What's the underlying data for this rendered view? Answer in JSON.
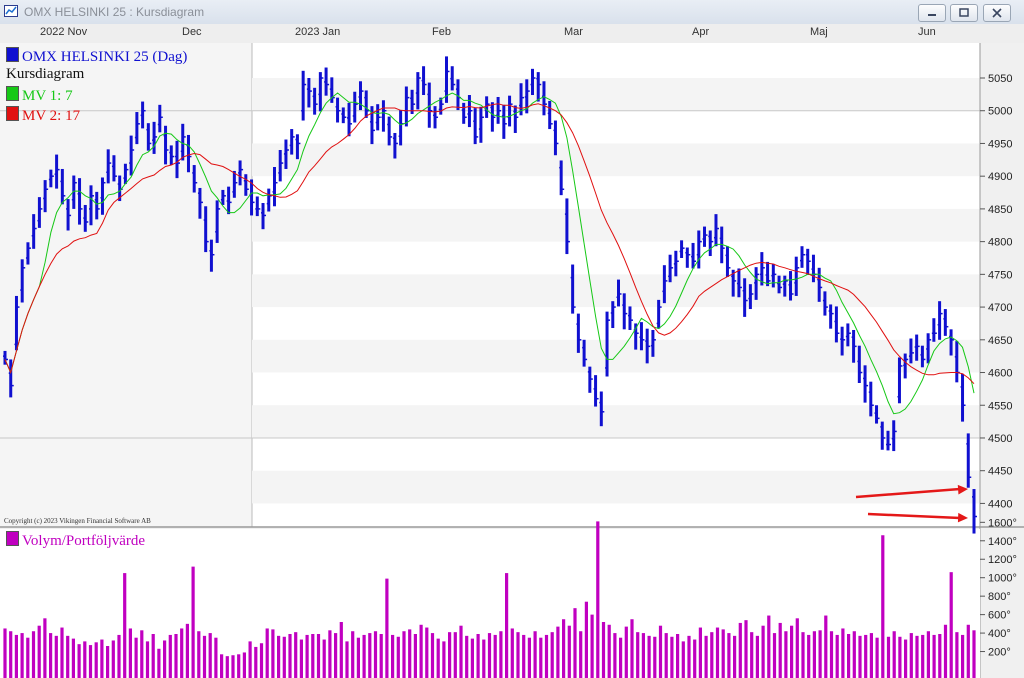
{
  "window": {
    "title": "OMX HELSINKI 25 : Kursdiagram"
  },
  "legend": {
    "main": "OMX HELSINKI 25 (Dag)",
    "chart_name": "Kursdiagram",
    "ma1": "MV 1: 7",
    "ma2": "MV 2: 17",
    "volume": "Volym/Portföljvärde"
  },
  "copyright": "Copyright (c) 2023 Vikingen Financial Software AB",
  "colors": {
    "price_bars": "#1010d0",
    "ma1": "#16c816",
    "ma2": "#e01010",
    "volume": "#c000c0",
    "arrows": "#e41818"
  },
  "chart_data": [
    {
      "type": "bar",
      "subtype": "ohlc-price",
      "months": [
        "2022 Nov",
        "Dec",
        "2023 Jan",
        "Feb",
        "Mar",
        "Apr",
        "Maj",
        "Jun"
      ],
      "ylim": [
        4370,
        5100
      ],
      "yticks": [
        4400,
        4450,
        4500,
        4550,
        4600,
        4650,
        4700,
        4750,
        4800,
        4850,
        4900,
        4950,
        5000,
        5050
      ],
      "close_approx": [
        4620,
        4580,
        4700,
        4760,
        4790,
        4820,
        4850,
        4880,
        4900,
        4910,
        4870,
        4840,
        4890,
        4850,
        4830,
        4870,
        4850,
        4890,
        4920,
        4900,
        4880,
        4910,
        4940,
        4980,
        5000,
        4950,
        4960,
        4990,
        4940,
        4930,
        4920,
        4960,
        4930,
        4890,
        4860,
        4800,
        4780,
        4850,
        4870,
        4860,
        4890,
        4910,
        4880,
        4860,
        4850,
        4840,
        4870,
        4890,
        4920,
        4940,
        4960,
        4950,
        5040,
        5030,
        5010,
        5050,
        5040,
        5020,
        5000,
        4990,
        4980,
        5010,
        5030,
        5000,
        4970,
        4990,
        5000,
        4960,
        4950,
        4980,
        5020,
        5010,
        5050,
        5040,
        5000,
        4990,
        5010,
        5060,
        5040,
        5020,
        4990,
        5000,
        4960,
        4990,
        5010,
        4990,
        5000,
        4980,
        5010,
        4990,
        5020,
        5030,
        5050,
        5040,
        5010,
        4980,
        4950,
        4880,
        4800,
        4700,
        4650,
        4620,
        4590,
        4560,
        4540,
        4680,
        4700,
        4720,
        4690,
        4680,
        4660,
        4650,
        4640,
        4650,
        4700,
        4740,
        4760,
        4770,
        4790,
        4780,
        4770,
        4800,
        4810,
        4800,
        4820,
        4790,
        4760,
        4740,
        4730,
        4710,
        4720,
        4750,
        4760,
        4740,
        4750,
        4730,
        4740,
        4720,
        4760,
        4780,
        4770,
        4750,
        4730,
        4700,
        4690,
        4660,
        4650,
        4660,
        4640,
        4600,
        4580,
        4550,
        4530,
        4500,
        4490,
        4510,
        4610,
        4620,
        4630,
        4640,
        4620,
        4650,
        4660,
        4690,
        4670,
        4650,
        4600,
        4550,
        4440,
        4380
      ],
      "volume_axis": {
        "ylim": [
          0,
          1750
        ],
        "yticks": [
          "200°",
          "400°",
          "600°",
          "800°",
          "1000°",
          "1200°",
          "1400°",
          "1600°"
        ]
      },
      "volume_approx": [
        450,
        420,
        380,
        400,
        350,
        420,
        480,
        560,
        400,
        370,
        460,
        370,
        340,
        280,
        310,
        270,
        300,
        330,
        260,
        320,
        380,
        1050,
        450,
        350,
        430,
        310,
        390,
        230,
        320,
        380,
        390,
        450,
        500,
        1120,
        420,
        370,
        400,
        350,
        170,
        150,
        160,
        170,
        190,
        310,
        250,
        290,
        450,
        440,
        370,
        360,
        390,
        410,
        330,
        380,
        390,
        390,
        330,
        430,
        400,
        520,
        310,
        420,
        350,
        380,
        400,
        420,
        390,
        990,
        380,
        360,
        420,
        440,
        390,
        490,
        460,
        400,
        340,
        310,
        410,
        410,
        480,
        370,
        340,
        390,
        330,
        400,
        380,
        420,
        1050,
        450,
        410,
        380,
        350,
        420,
        350,
        380,
        410,
        470,
        550,
        480,
        670,
        420,
        740,
        600,
        1610,
        520,
        490,
        400,
        350,
        470,
        550,
        410,
        400,
        370,
        360,
        480,
        400,
        360,
        390,
        310,
        370,
        330,
        460,
        370,
        410,
        460,
        440,
        400,
        370,
        510,
        540,
        410,
        370,
        480,
        590,
        400,
        510,
        420,
        480,
        560,
        410,
        380,
        420,
        430,
        590,
        420,
        380,
        450,
        390,
        420,
        370,
        380,
        400,
        350,
        1460,
        360,
        420,
        360,
        330,
        400,
        370,
        380,
        420,
        380,
        390,
        490,
        1060,
        410,
        380,
        490,
        430
      ]
    }
  ],
  "annotations": {
    "arrows": 2
  }
}
